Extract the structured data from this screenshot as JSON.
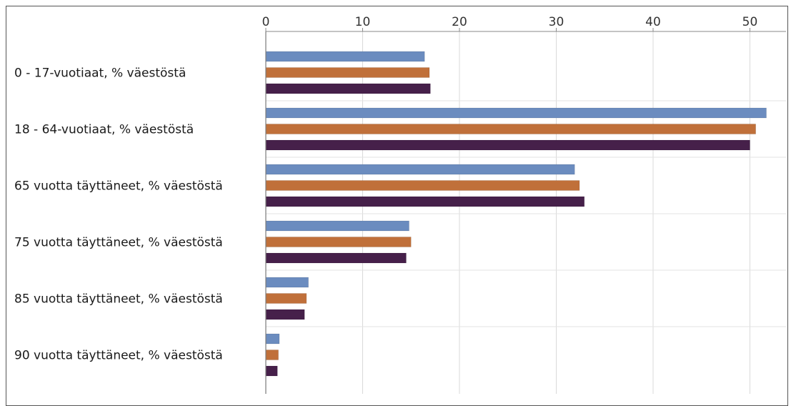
{
  "chart_data": {
    "type": "bar",
    "orientation": "horizontal",
    "title": "",
    "xlabel": "",
    "ylabel": "",
    "axis_position": "top",
    "xlim": [
      0,
      52.5
    ],
    "xticks": [
      "0",
      "10",
      "20",
      "30",
      "40",
      "50"
    ],
    "grid": true,
    "legend": "none",
    "categories": [
      "0 - 17-vuotiaat, % väestöstä",
      "18 - 64-vuotiaat, % väestöstä",
      "65 vuotta täyttäneet, % väestöstä",
      "75 vuotta täyttäneet, % väestöstä",
      "85 vuotta täyttäneet, % väestöstä",
      "90 vuotta täyttäneet, % väestöstä"
    ],
    "series": [
      {
        "color": "#6b8cbf",
        "values": [
          16.4,
          51.7,
          31.9,
          14.8,
          4.4,
          1.4
        ]
      },
      {
        "color": "#c0703a",
        "values": [
          16.9,
          50.6,
          32.4,
          15.0,
          4.2,
          1.3
        ]
      },
      {
        "color": "#46204a",
        "values": [
          17.0,
          50.0,
          32.9,
          14.5,
          4.0,
          1.2
        ]
      }
    ]
  }
}
